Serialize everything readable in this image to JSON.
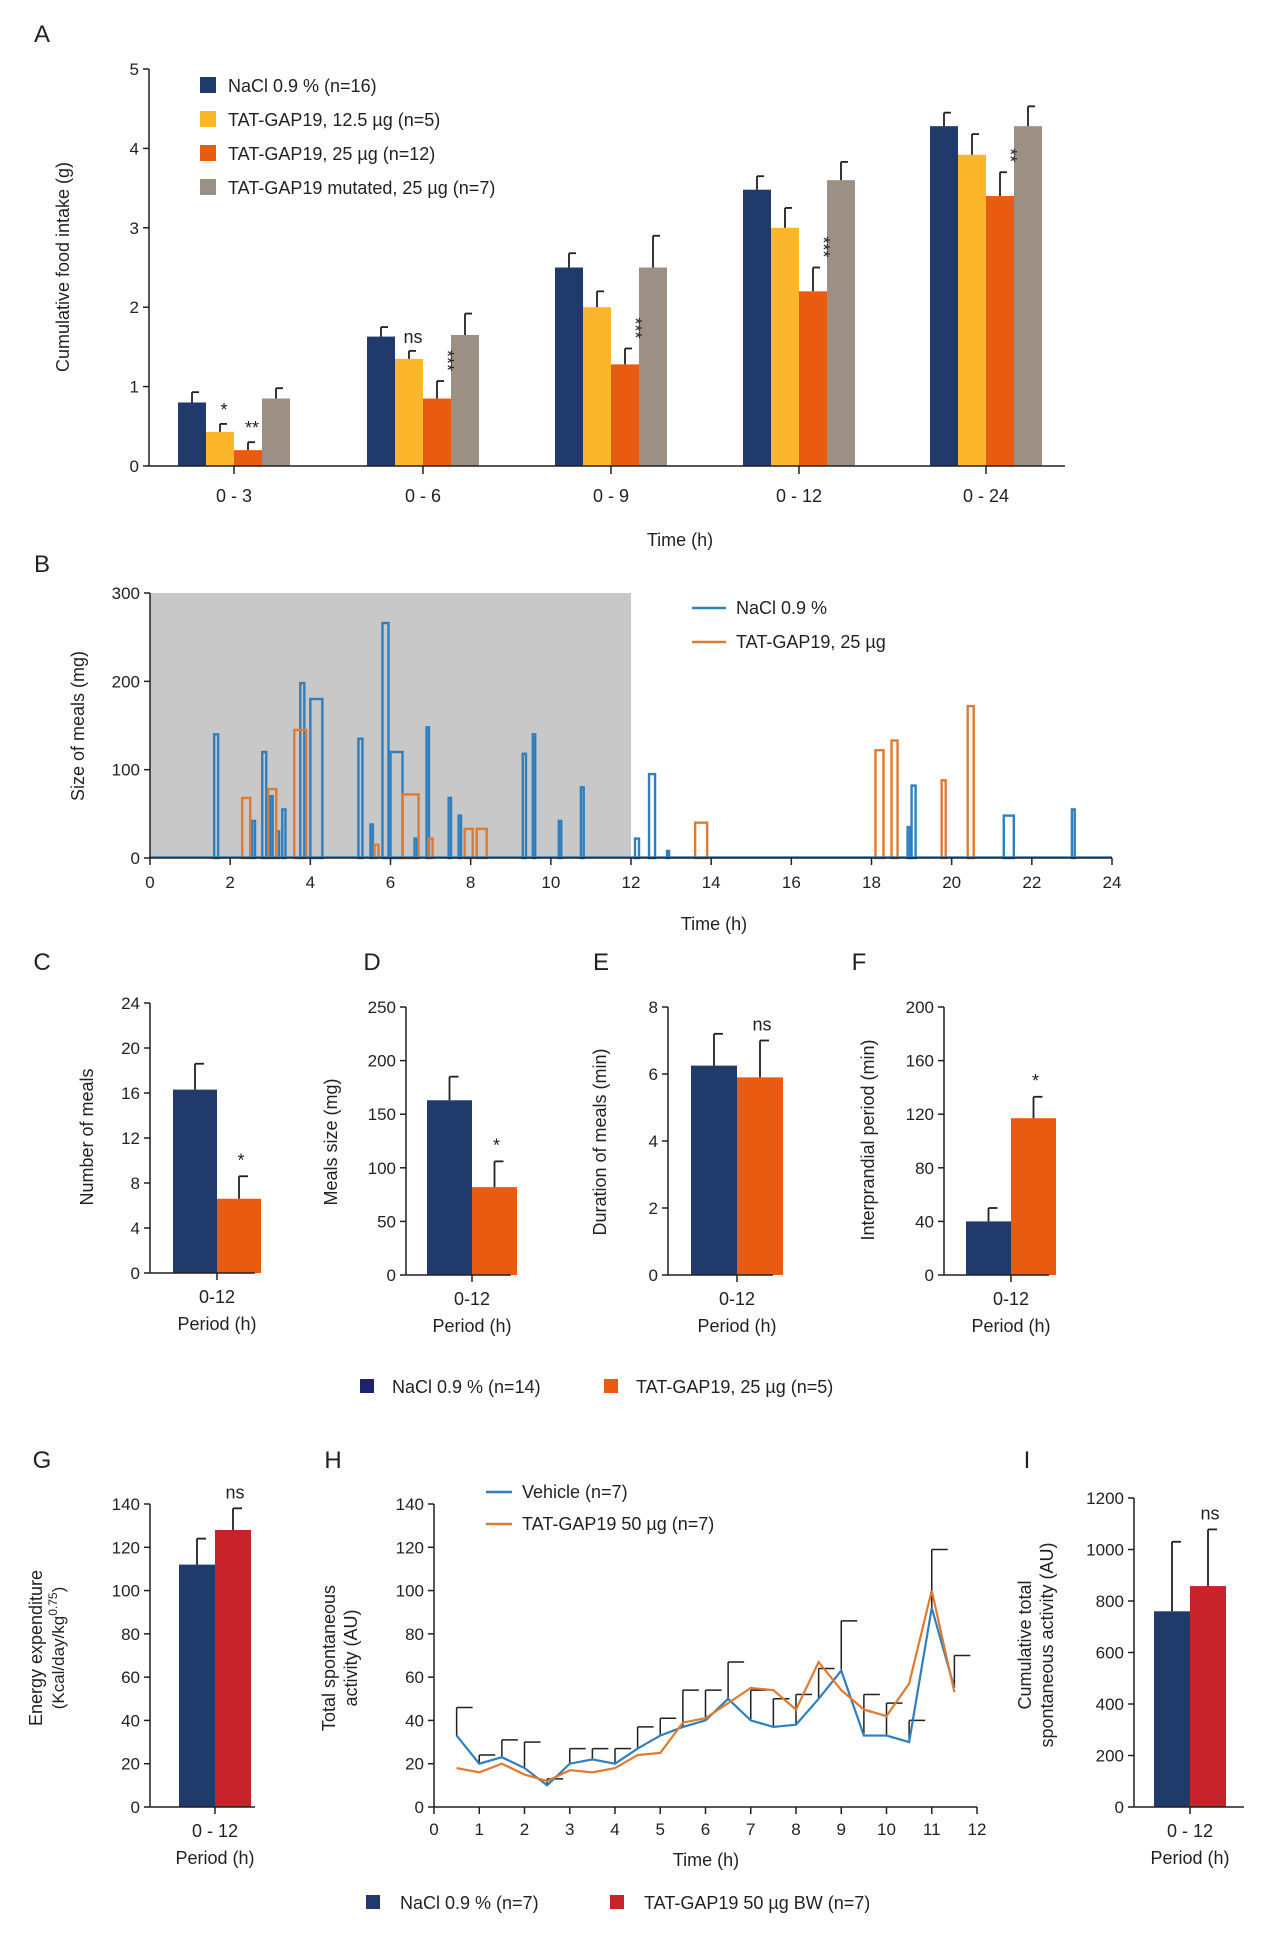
{
  "colors": {
    "navy": "#1f3a6b",
    "yellow": "#fbb62c",
    "orange": "#ea5b12",
    "taupe": "#9c8f84",
    "blue_line": "#2f7fbf",
    "orange_line": "#e07a30",
    "red": "#c8232b",
    "shade": "#c8c8c8",
    "legend_navy": "#1f236b"
  },
  "chart_data": [
    {
      "panel": "A",
      "type": "bar",
      "ylabel": "Cumulative food intake  (g)",
      "xlabel": "Time (h)",
      "ylim": [
        0,
        5
      ],
      "yticks": [
        "0",
        "1",
        "2",
        "3",
        "4",
        "5"
      ],
      "categories": [
        "0 - 3",
        "0 - 6",
        "0 - 9",
        "0 - 12",
        "0 - 24"
      ],
      "series": [
        {
          "name": "NaCl 0.9 % (n=16)",
          "color": "navy",
          "values": [
            0.8,
            1.63,
            2.5,
            3.48,
            4.28
          ],
          "errors": [
            0.13,
            0.12,
            0.18,
            0.17,
            0.17
          ]
        },
        {
          "name": "TAT-GAP19,  12.5 µg (n=5)",
          "color": "yellow",
          "values": [
            0.43,
            1.35,
            2.0,
            3.0,
            3.92
          ],
          "errors": [
            0.1,
            0.1,
            0.2,
            0.25,
            0.26
          ]
        },
        {
          "name": "TAT-GAP19, 25 µg  (n=12)",
          "color": "orange",
          "values": [
            0.2,
            0.85,
            1.28,
            2.2,
            3.4
          ],
          "errors": [
            0.1,
            0.22,
            0.2,
            0.3,
            0.3
          ]
        },
        {
          "name": "TAT-GAP19 mutated, 25 µg (n=7)",
          "color": "taupe",
          "values": [
            0.85,
            1.65,
            2.5,
            3.6,
            4.28
          ],
          "errors": [
            0.13,
            0.27,
            0.4,
            0.23,
            0.25
          ]
        }
      ],
      "annotations": [
        {
          "text": "*",
          "category": 0,
          "series": 1,
          "vertical": false
        },
        {
          "text": "**",
          "category": 0,
          "series": 2,
          "vertical": false
        },
        {
          "text": "ns",
          "category": 1,
          "series": 1,
          "vertical": false
        },
        {
          "text": "***",
          "category": 1,
          "series": 2,
          "vertical": true
        },
        {
          "text": "***",
          "category": 2,
          "series": 2,
          "vertical": true
        },
        {
          "text": "***",
          "category": 3,
          "series": 2,
          "vertical": true
        },
        {
          "text": "**",
          "category": 4,
          "series": 2,
          "vertical": true
        }
      ]
    },
    {
      "panel": "B",
      "type": "bar",
      "ylabel": "Size of meals (mg)",
      "xlabel": "Time (h)",
      "xlim": [
        0,
        24
      ],
      "ylim": [
        0,
        300
      ],
      "xticks": [
        "0",
        "2",
        "4",
        "6",
        "8",
        "10",
        "12",
        "14",
        "16",
        "18",
        "20",
        "22",
        "24"
      ],
      "yticks": [
        "0",
        "100",
        "200",
        "300"
      ],
      "shaded_range": [
        0,
        12
      ],
      "series": [
        {
          "name": "NaCl 0.9 %",
          "color": "blue_line",
          "meals": [
            [
              1.6,
              1.7,
              140
            ],
            [
              2.8,
              2.9,
              120
            ],
            [
              2.55,
              2.62,
              42
            ],
            [
              3.0,
              3.06,
              70
            ],
            [
              3.15,
              3.22,
              30
            ],
            [
              3.3,
              3.38,
              55
            ],
            [
              3.75,
              3.85,
              198
            ],
            [
              4.0,
              4.3,
              180
            ],
            [
              5.2,
              5.3,
              135
            ],
            [
              5.5,
              5.56,
              38
            ],
            [
              5.8,
              5.95,
              266
            ],
            [
              6.0,
              6.3,
              120
            ],
            [
              6.6,
              6.66,
              22
            ],
            [
              6.9,
              6.96,
              148
            ],
            [
              7.45,
              7.51,
              68
            ],
            [
              7.7,
              7.76,
              48
            ],
            [
              9.3,
              9.38,
              118
            ],
            [
              9.55,
              9.61,
              140
            ],
            [
              10.2,
              10.26,
              42
            ],
            [
              10.75,
              10.82,
              80
            ],
            [
              12.1,
              12.2,
              22
            ],
            [
              12.45,
              12.6,
              95
            ],
            [
              12.9,
              12.95,
              8
            ],
            [
              18.9,
              18.96,
              35
            ],
            [
              19.0,
              19.1,
              82
            ],
            [
              21.3,
              21.55,
              48
            ],
            [
              23.0,
              23.07,
              55
            ]
          ]
        },
        {
          "name": "TAT-GAP19, 25 µg",
          "color": "orange_line",
          "meals": [
            [
              2.3,
              2.5,
              68
            ],
            [
              2.95,
              3.15,
              78
            ],
            [
              3.6,
              3.9,
              145
            ],
            [
              5.6,
              5.7,
              15
            ],
            [
              6.3,
              6.7,
              72
            ],
            [
              6.95,
              7.05,
              22
            ],
            [
              7.85,
              8.05,
              33
            ],
            [
              8.15,
              8.4,
              33
            ],
            [
              13.6,
              13.9,
              40
            ],
            [
              18.1,
              18.3,
              122
            ],
            [
              18.5,
              18.65,
              133
            ],
            [
              19.75,
              19.85,
              88
            ],
            [
              20.4,
              20.55,
              172
            ]
          ]
        }
      ]
    },
    {
      "panel": "C",
      "type": "bar",
      "ylabel": "Number of meals",
      "xlabel": "Period (h)",
      "categories": [
        "0-12"
      ],
      "ylim": [
        0,
        24
      ],
      "yticks": [
        "0",
        "4",
        "8",
        "12",
        "16",
        "20",
        "24"
      ],
      "series": [
        {
          "name": "NaCl 0.9 % (n=14)",
          "color": "navy",
          "values": [
            16.3
          ],
          "errors": [
            2.3
          ]
        },
        {
          "name": "TAT-GAP19, 25 µg  (n=5)",
          "color": "orange",
          "values": [
            6.6
          ],
          "errors": [
            2.0
          ]
        }
      ],
      "annotation": "*"
    },
    {
      "panel": "D",
      "type": "bar",
      "ylabel": "Meals size  (mg)",
      "xlabel": "Period (h)",
      "categories": [
        "0-12"
      ],
      "ylim": [
        0,
        250
      ],
      "yticks": [
        "0",
        "50",
        "100",
        "150",
        "200",
        "250"
      ],
      "series": [
        {
          "name": "NaCl 0.9 % (n=14)",
          "color": "navy",
          "values": [
            163
          ],
          "errors": [
            22
          ]
        },
        {
          "name": "TAT-GAP19, 25 µg  (n=5)",
          "color": "orange",
          "values": [
            82
          ],
          "errors": [
            24
          ]
        }
      ],
      "annotation": "*"
    },
    {
      "panel": "E",
      "type": "bar",
      "ylabel": "Duration of meals (min)",
      "xlabel": "Period (h)",
      "categories": [
        "0-12"
      ],
      "ylim": [
        0,
        8
      ],
      "yticks": [
        "0",
        "2",
        "4",
        "6",
        "8"
      ],
      "series": [
        {
          "name": "NaCl 0.9 % (n=14)",
          "color": "navy",
          "values": [
            6.25
          ],
          "errors": [
            0.95
          ]
        },
        {
          "name": "TAT-GAP19, 25 µg  (n=5)",
          "color": "orange",
          "values": [
            5.9
          ],
          "errors": [
            1.1
          ]
        }
      ],
      "annotation": "ns"
    },
    {
      "panel": "F",
      "type": "bar",
      "ylabel": "Interprandial period (min)",
      "xlabel": "Period (h)",
      "categories": [
        "0-12"
      ],
      "ylim": [
        0,
        200
      ],
      "yticks": [
        "0",
        "40",
        "80",
        "120",
        "160",
        "200"
      ],
      "series": [
        {
          "name": "NaCl 0.9 % (n=14)",
          "color": "navy",
          "values": [
            40
          ],
          "errors": [
            10
          ]
        },
        {
          "name": "TAT-GAP19, 25 µg  (n=5)",
          "color": "orange",
          "values": [
            117
          ],
          "errors": [
            16
          ]
        }
      ],
      "annotation": "*"
    },
    {
      "panel": "G",
      "type": "bar",
      "ylabel": "Energy expenditure",
      "ylabel2": "(Kcal/day/kg",
      "ylabel2_sup": "0.75",
      "ylabel2_end": ")",
      "xlabel": "Period (h)",
      "categories": [
        "0 - 12"
      ],
      "ylim": [
        0,
        140
      ],
      "yticks": [
        "0",
        "20",
        "40",
        "60",
        "80",
        "100",
        "120",
        "140"
      ],
      "series": [
        {
          "name": "NaCl 0.9 % (n=7)",
          "color": "navy",
          "values": [
            112
          ],
          "errors": [
            12
          ]
        },
        {
          "name": "TAT-GAP19  50 µg BW (n=7)",
          "color": "red",
          "values": [
            128
          ],
          "errors": [
            10
          ]
        }
      ],
      "annotation": "ns"
    },
    {
      "panel": "H",
      "type": "line",
      "ylabel": "Total spontaneous",
      "ylabel2": "activity (AU)",
      "xlabel": "Time (h)",
      "xlim": [
        0,
        12
      ],
      "ylim": [
        0,
        140
      ],
      "xticks": [
        "0",
        "1",
        "2",
        "3",
        "4",
        "5",
        "6",
        "7",
        "8",
        "9",
        "10",
        "11",
        "12"
      ],
      "yticks": [
        "0",
        "20",
        "40",
        "60",
        "80",
        "100",
        "120",
        "140"
      ],
      "x": [
        0.5,
        1,
        1.5,
        2,
        2.5,
        3,
        3.5,
        4,
        4.5,
        5,
        5.5,
        6,
        6.5,
        7,
        7.5,
        8,
        8.5,
        9,
        9.5,
        10,
        10.5,
        11,
        11.5
      ],
      "series": [
        {
          "name": "Vehicle (n=7)",
          "color": "blue_line",
          "values": [
            33,
            20,
            23,
            18,
            10,
            20,
            22,
            20,
            27,
            33,
            37,
            40,
            50,
            40,
            37,
            38,
            50,
            63,
            33,
            33,
            30,
            92,
            55
          ],
          "errors": [
            13,
            4,
            8,
            12,
            3,
            7,
            5,
            7,
            10,
            8,
            17,
            14,
            17,
            14,
            13,
            14,
            14,
            23,
            19,
            15,
            10,
            27,
            15
          ]
        },
        {
          "name": "TAT-GAP19  50 µg (n=7)",
          "color": "orange_line",
          "values": [
            18,
            16,
            20,
            15,
            12,
            17,
            16,
            18,
            24,
            25,
            39,
            41,
            48,
            55,
            54,
            45,
            67,
            54,
            45,
            42,
            57,
            100,
            53
          ],
          "errors": [
            0,
            0,
            0,
            0,
            0,
            0,
            0,
            0,
            0,
            0,
            0,
            0,
            0,
            0,
            0,
            0,
            0,
            0,
            0,
            0,
            0,
            0,
            0
          ]
        }
      ]
    },
    {
      "panel": "I",
      "type": "bar",
      "ylabel": "Cumulative total",
      "ylabel2": "spontaneous activity (AU)",
      "xlabel": "Period (h)",
      "categories": [
        "0 - 12"
      ],
      "ylim": [
        0,
        1200
      ],
      "yticks": [
        "0",
        "200",
        "400",
        "600",
        "800",
        "1000",
        "1200"
      ],
      "series": [
        {
          "name": "NaCl 0.9 % (n=7)",
          "color": "navy",
          "values": [
            760
          ],
          "errors": [
            270
          ]
        },
        {
          "name": "TAT-GAP19  50 µg BW (n=7)",
          "color": "red",
          "values": [
            858
          ],
          "errors": [
            220
          ]
        }
      ],
      "annotation": "ns"
    }
  ],
  "panel_labels": [
    "A",
    "B",
    "C",
    "D",
    "E",
    "F",
    "G",
    "H",
    "I"
  ],
  "legend_CF": [
    {
      "label": "NaCl 0.9 % (n=14)",
      "color": "legend_navy"
    },
    {
      "label": "TAT-GAP19, 25 µg  (n=5)",
      "color": "orange"
    }
  ],
  "legend_GI": [
    {
      "label": "NaCl 0.9 % (n=7)",
      "color": "navy"
    },
    {
      "label": "TAT-GAP19  50 µg BW (n=7)",
      "color": "red"
    }
  ]
}
